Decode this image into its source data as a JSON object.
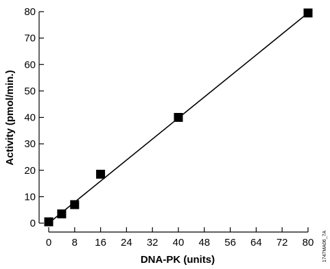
{
  "chart_data": {
    "type": "scatter",
    "xlabel": "DNA-PK (units)",
    "ylabel": "Activity (pmol/min.)",
    "xlim": [
      0,
      80
    ],
    "ylim": [
      0,
      80
    ],
    "x_ticks": [
      0,
      8,
      16,
      24,
      32,
      40,
      48,
      56,
      64,
      72,
      80
    ],
    "y_ticks": [
      0,
      10,
      20,
      30,
      40,
      50,
      60,
      70,
      80
    ],
    "grid": false,
    "legend": "none",
    "series": [
      {
        "marker": "square",
        "points": [
          {
            "x": 0,
            "y": 0.5
          },
          {
            "x": 4,
            "y": 3.5
          },
          {
            "x": 8,
            "y": 7
          },
          {
            "x": 16,
            "y": 18.5
          },
          {
            "x": 40,
            "y": 40
          },
          {
            "x": 80,
            "y": 79.5
          }
        ]
      }
    ],
    "fit_line": {
      "x": [
        0,
        80
      ],
      "y": [
        0,
        79.5
      ]
    },
    "figure_code": "1747MA06_7A"
  }
}
